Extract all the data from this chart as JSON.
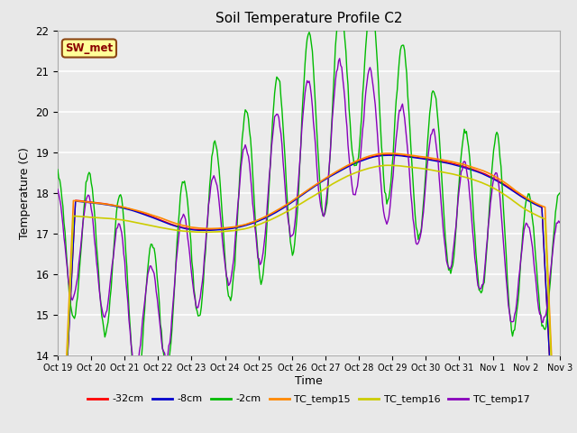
{
  "title": "Soil Temperature Profile C2",
  "xlabel": "Time",
  "ylabel": "Temperature (C)",
  "ylim": [
    14.0,
    22.0
  ],
  "yticks": [
    14.0,
    15.0,
    16.0,
    17.0,
    18.0,
    19.0,
    20.0,
    21.0,
    22.0
  ],
  "xtick_labels": [
    "Oct 19",
    "Oct 20",
    "Oct 21",
    "Oct 22",
    "Oct 23",
    "Oct 24",
    "Oct 25",
    "Oct 26",
    "Oct 27",
    "Oct 28",
    "Oct 29",
    "Oct 30",
    "Oct 31",
    "Nov 1",
    "Nov 2",
    "Nov 3"
  ],
  "annotation": "SW_met",
  "annotation_color": "#8B0000",
  "annotation_bg": "#FFFF99",
  "colors": {
    "-32cm": "#FF0000",
    "-8cm": "#0000CC",
    "-2cm": "#00BB00",
    "TC_temp15": "#FF8800",
    "TC_temp16": "#CCCC00",
    "TC_temp17": "#8800BB"
  },
  "legend_labels": [
    "-32cm",
    "-8cm",
    "-2cm",
    "TC_temp15",
    "TC_temp16",
    "TC_temp17"
  ],
  "background_color": "#E8E8E8",
  "plot_bg": "#EBEBEB",
  "grid_color": "#FFFFFF",
  "n_points": 480
}
